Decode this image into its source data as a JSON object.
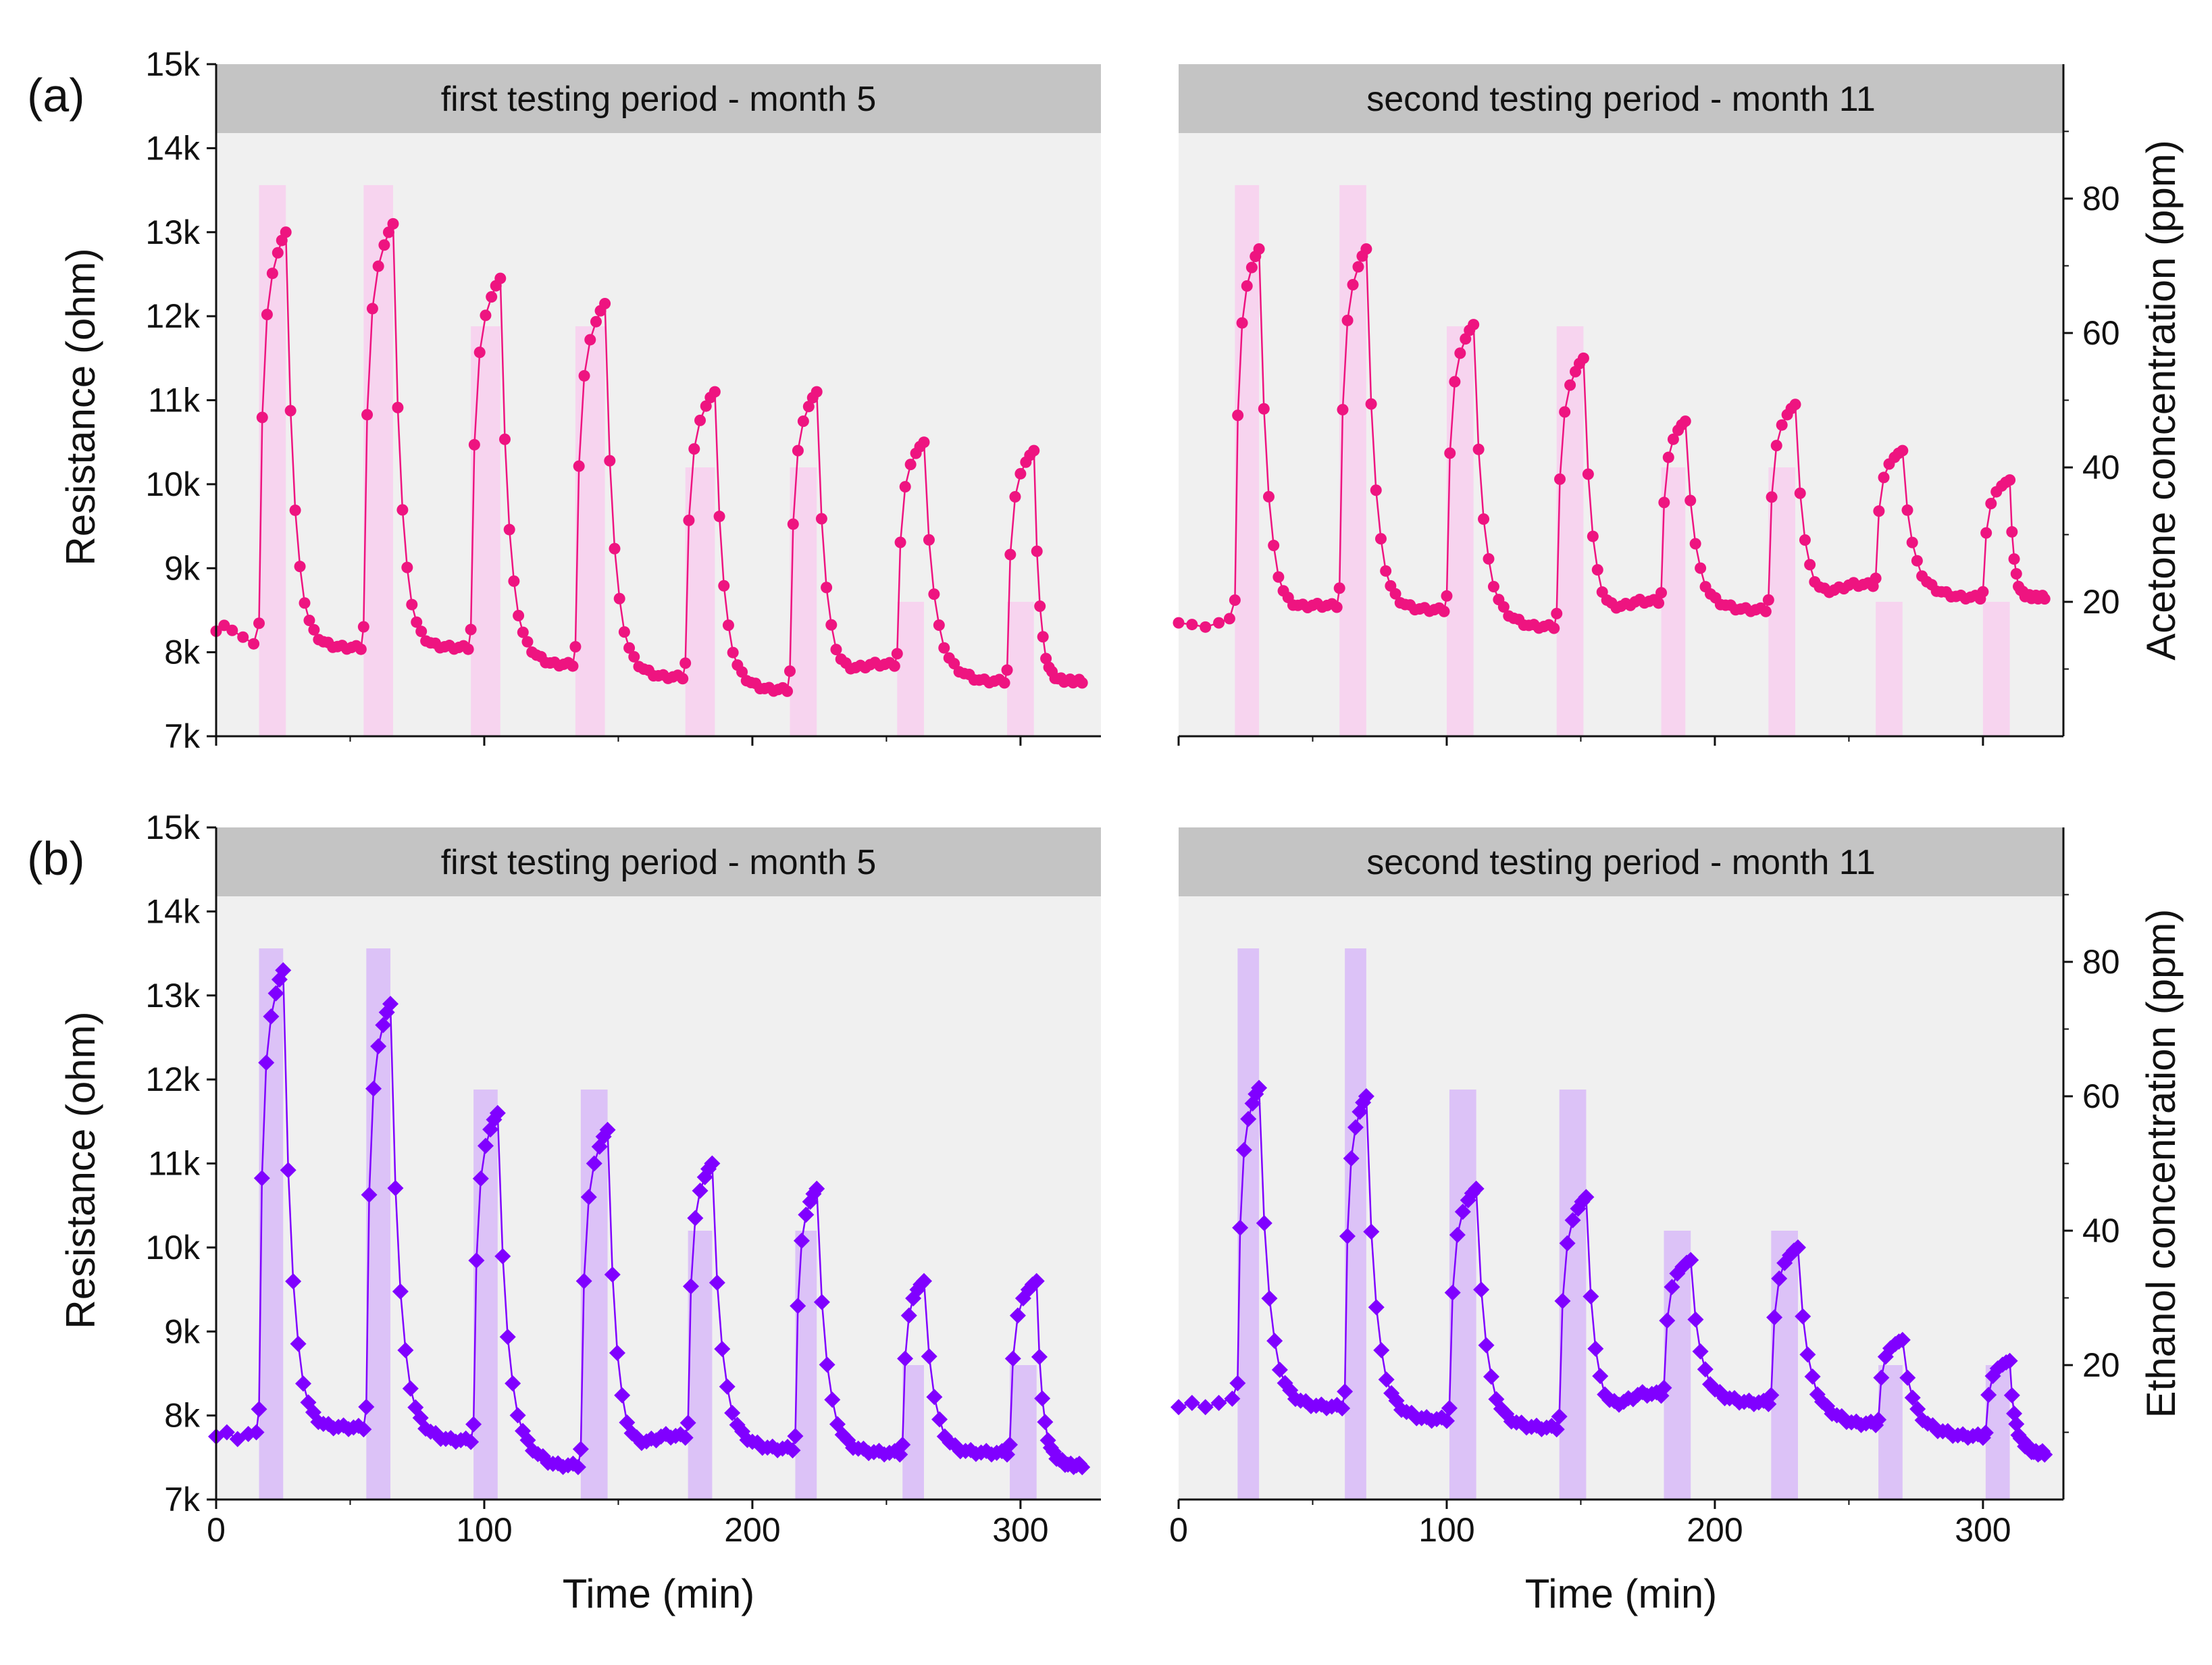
{
  "chart_data": [
    {
      "type": "line",
      "panel_label": "(a)",
      "marker": "circle",
      "color": "#ee1480",
      "band_color": "#f7d4ef",
      "ylabel_left": "Resistance (ohm)",
      "ylabel_right": "Acetone concentration (ppm)",
      "xlabel": "",
      "ylim": [
        7000,
        15000
      ],
      "y2lim": [
        0,
        100
      ],
      "y_ticks": [
        "7k",
        "8k",
        "9k",
        "10k",
        "11k",
        "12k",
        "13k",
        "14k",
        "15k"
      ],
      "y2_ticks": [
        "20",
        "40",
        "60",
        "80"
      ],
      "x_ticks": [
        "0",
        "100",
        "200",
        "300"
      ],
      "subplots": [
        {
          "title": "first testing period - month 5",
          "xlim": [
            0,
            330
          ],
          "bands": [
            {
              "start": 16,
              "end": 26,
              "ppm": 82
            },
            {
              "start": 55,
              "end": 66,
              "ppm": 82
            },
            {
              "start": 95,
              "end": 106,
              "ppm": 61
            },
            {
              "start": 134,
              "end": 145,
              "ppm": 61
            },
            {
              "start": 175,
              "end": 186,
              "ppm": 40
            },
            {
              "start": 214,
              "end": 224,
              "ppm": 40
            },
            {
              "start": 254,
              "end": 264,
              "ppm": 20
            },
            {
              "start": 295,
              "end": 305,
              "ppm": 20
            }
          ],
          "baseline": [
            [
              0,
              8250
            ],
            [
              3,
              8320
            ],
            [
              6,
              8260
            ],
            [
              10,
              8180
            ],
            [
              14,
              8100
            ]
          ],
          "cycles": [
            {
              "on": 16,
              "off": 26,
              "start": 8100,
              "peak": 13000,
              "end": 8050
            },
            {
              "on": 55,
              "off": 66,
              "start": 8050,
              "peak": 13100,
              "end": 8050
            },
            {
              "on": 95,
              "off": 106,
              "start": 8050,
              "peak": 12450,
              "end": 7850
            },
            {
              "on": 134,
              "off": 145,
              "start": 7850,
              "peak": 12150,
              "end": 7700
            },
            {
              "on": 175,
              "off": 186,
              "start": 7700,
              "peak": 11100,
              "end": 7550
            },
            {
              "on": 214,
              "off": 224,
              "start": 7600,
              "peak": 11100,
              "end": 7850
            },
            {
              "on": 254,
              "off": 264,
              "start": 7850,
              "peak": 10500,
              "end": 7650
            },
            {
              "on": 295,
              "off": 305,
              "start": 7650,
              "peak": 10400,
              "end": 7650
            }
          ]
        },
        {
          "title": "second testing period - month 11",
          "xlim": [
            0,
            330
          ],
          "bands": [
            {
              "start": 21,
              "end": 30,
              "ppm": 82
            },
            {
              "start": 60,
              "end": 70,
              "ppm": 82
            },
            {
              "start": 100,
              "end": 110,
              "ppm": 61
            },
            {
              "start": 141,
              "end": 151,
              "ppm": 61
            },
            {
              "start": 180,
              "end": 189,
              "ppm": 40
            },
            {
              "start": 220,
              "end": 230,
              "ppm": 40
            },
            {
              "start": 260,
              "end": 270,
              "ppm": 20
            },
            {
              "start": 300,
              "end": 310,
              "ppm": 20
            }
          ],
          "baseline": [
            [
              0,
              8350
            ],
            [
              5,
              8330
            ],
            [
              10,
              8300
            ],
            [
              15,
              8350
            ],
            [
              19,
              8400
            ]
          ],
          "cycles": [
            {
              "on": 21,
              "off": 30,
              "start": 8400,
              "peak": 12800,
              "end": 8550
            },
            {
              "on": 60,
              "off": 70,
              "start": 8550,
              "peak": 12800,
              "end": 8500
            },
            {
              "on": 100,
              "off": 110,
              "start": 8500,
              "peak": 11900,
              "end": 8300
            },
            {
              "on": 141,
              "off": 151,
              "start": 8300,
              "peak": 11500,
              "end": 8600
            },
            {
              "on": 180,
              "off": 189,
              "start": 8600,
              "peak": 10750,
              "end": 8500
            },
            {
              "on": 220,
              "off": 230,
              "start": 8500,
              "peak": 10950,
              "end": 8800
            },
            {
              "on": 260,
              "off": 270,
              "start": 8800,
              "peak": 10400,
              "end": 8650
            },
            {
              "on": 300,
              "off": 310,
              "start": 8650,
              "peak": 10050,
              "end": 8650
            }
          ]
        }
      ]
    },
    {
      "type": "line",
      "panel_label": "(b)",
      "marker": "diamond",
      "color": "#8000ff",
      "band_color": "#dcc2f7",
      "ylabel_left": "Resistance (ohm)",
      "ylabel_right": "Ethanol concentration (ppm)",
      "xlabel": "Time (min)",
      "ylim": [
        7000,
        15000
      ],
      "y2lim": [
        0,
        100
      ],
      "y_ticks": [
        "7k",
        "8k",
        "9k",
        "10k",
        "11k",
        "12k",
        "13k",
        "14k",
        "15k"
      ],
      "y2_ticks": [
        "20",
        "40",
        "60",
        "80"
      ],
      "x_ticks": [
        "0",
        "100",
        "200",
        "300"
      ],
      "subplots": [
        {
          "title": "first testing period - month 5",
          "xlim": [
            0,
            330
          ],
          "bands": [
            {
              "start": 16,
              "end": 25,
              "ppm": 82
            },
            {
              "start": 56,
              "end": 65,
              "ppm": 82
            },
            {
              "start": 96,
              "end": 105,
              "ppm": 61
            },
            {
              "start": 136,
              "end": 146,
              "ppm": 61
            },
            {
              "start": 176,
              "end": 185,
              "ppm": 40
            },
            {
              "start": 216,
              "end": 224,
              "ppm": 40
            },
            {
              "start": 256,
              "end": 264,
              "ppm": 20
            },
            {
              "start": 296,
              "end": 306,
              "ppm": 20
            }
          ],
          "baseline": [
            [
              0,
              7750
            ],
            [
              4,
              7800
            ],
            [
              8,
              7720
            ],
            [
              12,
              7780
            ],
            [
              15,
              7800
            ]
          ],
          "cycles": [
            {
              "on": 16,
              "off": 25,
              "start": 7800,
              "peak": 13300,
              "end": 7850
            },
            {
              "on": 56,
              "off": 65,
              "start": 7850,
              "peak": 12900,
              "end": 7700
            },
            {
              "on": 96,
              "off": 105,
              "start": 7700,
              "peak": 11600,
              "end": 7400
            },
            {
              "on": 136,
              "off": 146,
              "start": 7400,
              "peak": 11400,
              "end": 7750
            },
            {
              "on": 176,
              "off": 185,
              "start": 7750,
              "peak": 11000,
              "end": 7600
            },
            {
              "on": 216,
              "off": 224,
              "start": 7600,
              "peak": 10700,
              "end": 7550
            },
            {
              "on": 256,
              "off": 264,
              "start": 7550,
              "peak": 9600,
              "end": 7550
            },
            {
              "on": 296,
              "off": 306,
              "start": 7550,
              "peak": 9600,
              "end": 7400
            }
          ]
        },
        {
          "title": "second testing period - month 11",
          "xlim": [
            0,
            330
          ],
          "bands": [
            {
              "start": 22,
              "end": 30,
              "ppm": 82
            },
            {
              "start": 62,
              "end": 70,
              "ppm": 82
            },
            {
              "start": 101,
              "end": 111,
              "ppm": 61
            },
            {
              "start": 142,
              "end": 152,
              "ppm": 61
            },
            {
              "start": 181,
              "end": 191,
              "ppm": 40
            },
            {
              "start": 221,
              "end": 231,
              "ppm": 40
            },
            {
              "start": 261,
              "end": 270,
              "ppm": 20
            },
            {
              "start": 301,
              "end": 310,
              "ppm": 20
            }
          ],
          "baseline": [
            [
              0,
              8100
            ],
            [
              5,
              8150
            ],
            [
              10,
              8100
            ],
            [
              15,
              8150
            ],
            [
              20,
              8200
            ]
          ],
          "cycles": [
            {
              "on": 22,
              "off": 30,
              "start": 8200,
              "peak": 11900,
              "end": 8100
            },
            {
              "on": 62,
              "off": 70,
              "start": 8100,
              "peak": 11800,
              "end": 7950
            },
            {
              "on": 101,
              "off": 111,
              "start": 7950,
              "peak": 10700,
              "end": 7850
            },
            {
              "on": 142,
              "off": 152,
              "start": 7850,
              "peak": 10600,
              "end": 8250
            },
            {
              "on": 181,
              "off": 191,
              "start": 8250,
              "peak": 9850,
              "end": 8150
            },
            {
              "on": 221,
              "off": 231,
              "start": 8150,
              "peak": 10000,
              "end": 7900
            },
            {
              "on": 261,
              "off": 270,
              "start": 7900,
              "peak": 8900,
              "end": 7750
            },
            {
              "on": 301,
              "off": 310,
              "start": 7750,
              "peak": 8650,
              "end": 7550
            }
          ]
        }
      ]
    }
  ]
}
